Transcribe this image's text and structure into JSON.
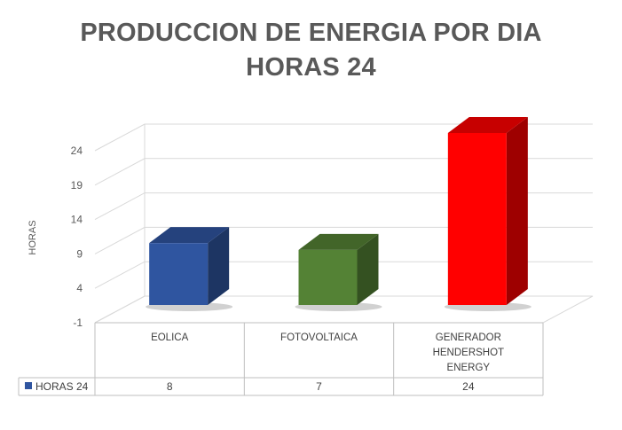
{
  "chart_data": {
    "type": "bar",
    "title": [
      "PRODUCCION DE ENERGIA POR DIA",
      "HORAS 24"
    ],
    "ylabel": "HORAS",
    "xlabel": "",
    "categories": [
      [
        "EOLICA"
      ],
      [
        "FOTOVOLTAICA"
      ],
      [
        "GENERADOR",
        "HENDERSHOT",
        "ENERGY"
      ]
    ],
    "series": [
      {
        "name": "HORAS 24",
        "values": [
          8,
          7,
          24
        ],
        "labels": [
          "8",
          "7",
          "24"
        ]
      }
    ],
    "bar_colors": [
      "#2f55a0",
      "#548235",
      "#ff0000"
    ],
    "legend_color": "#2f55a0",
    "yticks": [
      "-1",
      "4",
      "9",
      "14",
      "19",
      "24"
    ],
    "ylim": [
      -1,
      24
    ],
    "grid": true,
    "data_table": true
  }
}
